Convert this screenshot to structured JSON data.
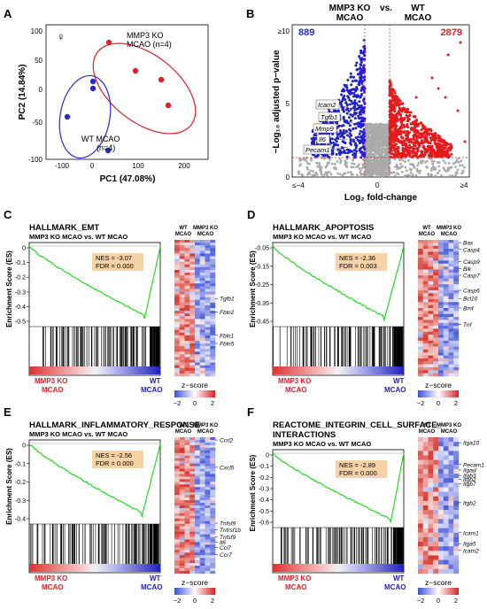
{
  "panels": {
    "A": {
      "letter": "A",
      "symbol": "♀",
      "group_ko_line1": "MMP3 KO",
      "group_ko_line2": "MCAO (n=4)",
      "group_wt_line1": "WT MCAO",
      "group_wt_line2": "(n=4)",
      "xlabel": "PC1 (47.08%)",
      "ylabel": "PC2 (14.84%)",
      "xticks": [
        "-100",
        "0",
        "100",
        "200"
      ],
      "yticks": [
        "100",
        "50",
        "0",
        "-50",
        "-100"
      ],
      "colors": {
        "ko": "#e0202a",
        "wt": "#2a2ad0"
      }
    },
    "B": {
      "letter": "B",
      "title_left_1": "MMP3 KO",
      "title_left_2": "MCAO",
      "title_vs": "vs.",
      "title_right_1": "WT",
      "title_right_2": "MCAO",
      "count_down": "889",
      "count_up": "2879",
      "xlabel": "Log₂ fold-change",
      "ylabel": "−Log₁₀ adjusted p−value",
      "xticks": [
        "≤−4",
        "0",
        "≥4"
      ],
      "yticks": [
        "≥10",
        "5",
        "0"
      ],
      "genes": [
        "Icam2",
        "Tgfb1",
        "Mmp9",
        "Il6",
        "Pecam1"
      ]
    },
    "C": {
      "letter": "C",
      "title": "HALLMARK_EMT",
      "subtitle": "MMP3 KO MCAO vs. WT MCAO",
      "nes": "NES = -3.07",
      "fdr": "FDR = 0.000",
      "yticks": [
        "0",
        "-0.1",
        "-0.2",
        "-0.3",
        "-0.4",
        "-0.5"
      ],
      "genes": [
        "Tgfb1",
        "Fbln2",
        "Fbln1",
        "Fbln5"
      ]
    },
    "D": {
      "letter": "D",
      "title": "HALLMARK_APOPTOSIS",
      "subtitle": "MMP3 KO MCAO vs. WT MCAO",
      "nes": "NES = -2.36",
      "fdr": "FDR = 0.003",
      "yticks": [
        "-0.05",
        "-0.15",
        "-0.25",
        "-0.35",
        "-0.45"
      ],
      "genes": [
        "Bax",
        "Casp4",
        "Casp9",
        "Bik",
        "Casp7",
        "Casp6",
        "Bcl10",
        "Bmf",
        "Tnf"
      ]
    },
    "E": {
      "letter": "E",
      "title": "HALLMARK_INFLAMMATORY_RESPONSE",
      "subtitle": "MMP3 KO MCAO vs. WT MCAO",
      "nes": "NES = -2.56",
      "fdr": "FDR = 0.000",
      "yticks": [
        "0",
        "-0.1",
        "-0.2",
        "-0.3",
        "-0.4"
      ],
      "genes": [
        "Ccrl2",
        "Cxcl5",
        "Tnfsf9",
        "Tnfrsf1b",
        "Tnfsf9",
        "Il6",
        "Ccl7",
        "Ccr7"
      ]
    },
    "F": {
      "letter": "F",
      "title": "REACTOME_INTEGRIN_CELL_SURFACE_",
      "title2": "INTERACTIONS",
      "subtitle": "MMP3 KO MCAO vs. WT MCAO",
      "nes": "NES = -2.89",
      "fdr": "FDR = 0.000",
      "yticks": [
        "0",
        "-0.1",
        "-0.2",
        "-0.3",
        "-0.4",
        "-0.5",
        "-0.6"
      ],
      "genes": [
        "Itga10",
        "Pecam1",
        "Itgad",
        "Itgb3",
        "Itgb2",
        "Itgb7",
        "Itgb2",
        "Icam1",
        "Itga5",
        "Icam2"
      ]
    }
  },
  "shared": {
    "ylabel_es": "Enrichment Score (ES)",
    "rank_left_1": "MMP3 KO",
    "rank_left_2": "MCAO",
    "rank_right_1": "WT",
    "rank_right_2": "MCAO",
    "heat_col1_1": "WT",
    "heat_col1_2": "MCAO",
    "heat_col2_1": "MMP3 KO",
    "heat_col2_2": "MCAO",
    "zscore": "z−score",
    "z_ticks": [
      "−2",
      "0",
      "2"
    ]
  }
}
